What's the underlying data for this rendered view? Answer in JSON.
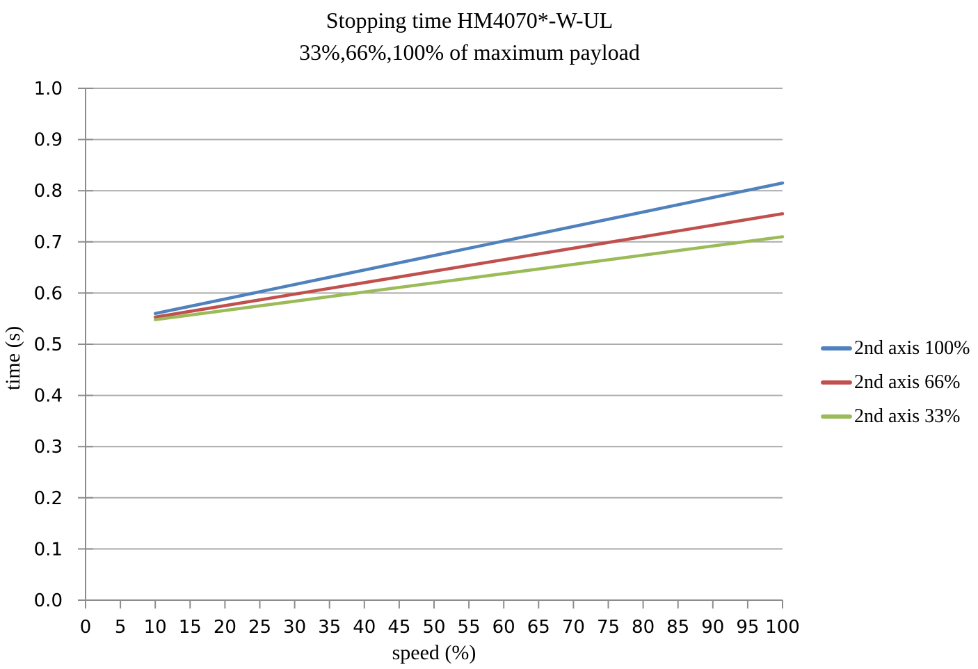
{
  "chart_data": {
    "type": "line",
    "title": "Stopping time HM4070*-W-UL",
    "subtitle": "33%,66%,100% of maximum payload",
    "xlabel": "speed (%)",
    "ylabel": "time (s)",
    "xlim": [
      0,
      100
    ],
    "ylim": [
      0.0,
      1.0
    ],
    "x_ticks": [
      0,
      5,
      10,
      15,
      20,
      25,
      30,
      35,
      40,
      45,
      50,
      55,
      60,
      65,
      70,
      75,
      80,
      85,
      90,
      95,
      100
    ],
    "y_ticks": [
      "0.0",
      "0.1",
      "0.2",
      "0.3",
      "0.4",
      "0.5",
      "0.6",
      "0.7",
      "0.8",
      "0.9",
      "1.0"
    ],
    "grid": "horizontal-only",
    "grid_color": "#ABABAB",
    "axis_color": "#8C8C8C",
    "legend_position": "right",
    "series": [
      {
        "name": "2nd axis 100%",
        "color": "#4F81BD",
        "x": [
          10,
          100
        ],
        "y": [
          0.56,
          0.815
        ]
      },
      {
        "name": "2nd axis 66%",
        "color": "#C0504D",
        "x": [
          10,
          100
        ],
        "y": [
          0.553,
          0.755
        ]
      },
      {
        "name": "2nd axis 33%",
        "color": "#9BBB59",
        "x": [
          10,
          100
        ],
        "y": [
          0.548,
          0.71
        ]
      }
    ]
  }
}
